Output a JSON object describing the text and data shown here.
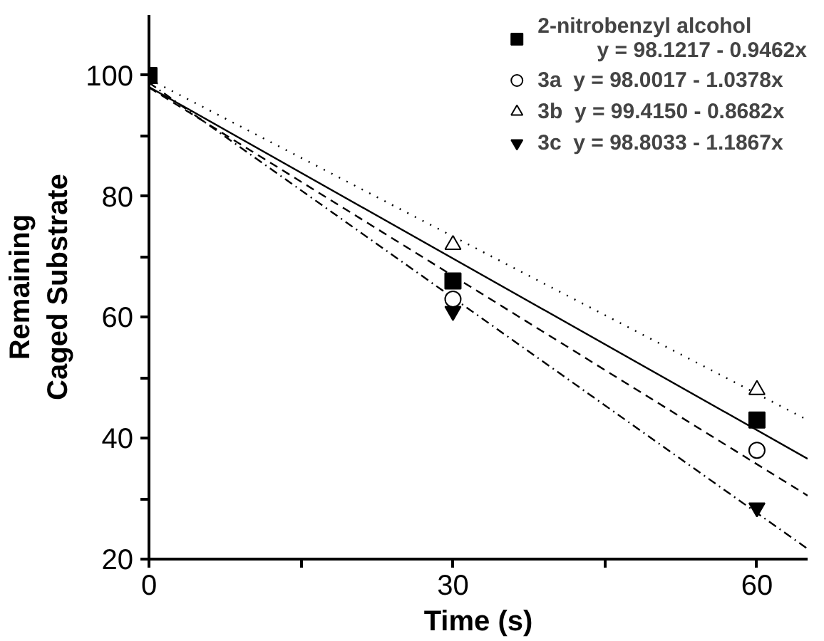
{
  "chart_data": {
    "type": "scatter",
    "xlabel": "Time (s)",
    "ylabel": "Remaining\nCaged Substrate",
    "xlim": [
      0,
      65
    ],
    "ylim": [
      20,
      110
    ],
    "xticks": [
      0,
      {
        "value": 15,
        "label": null
      },
      30,
      {
        "value": 45,
        "label": null
      },
      60
    ],
    "yticks": [
      20,
      {
        "value": 30,
        "label": null
      },
      40,
      {
        "value": 50,
        "label": null
      },
      60,
      {
        "value": 70,
        "label": null
      },
      80,
      {
        "value": 90,
        "label": null
      },
      100
    ],
    "grid": false,
    "legend": "top right",
    "series": [
      {
        "name": "2-nitrobenzyl alcohol\n          y = 98.1217 - 0.9462x",
        "color": "#000000",
        "marker": "square",
        "x": [
          0,
          30,
          60
        ],
        "values": [
          100,
          66,
          43
        ]
      },
      {
        "name": "3a  y = 98.0017 - 1.0378x",
        "color": "#000000",
        "marker": "circle",
        "x": [
          30,
          60
        ],
        "values": [
          63,
          38
        ]
      },
      {
        "name": "3b  y = 99.4150 - 0.8682x",
        "color": "#000000",
        "marker": "triangle",
        "x": [
          30,
          60
        ],
        "values": [
          72,
          48
        ]
      },
      {
        "name": "3c  y = 98.8033 - 1.1867x",
        "color": "#000000",
        "x": [
          30,
          60
        ],
        "values": [
          61,
          28.5
        ]
      },
      {
        "type": "line",
        "color": "#000000",
        "line_style": "solid",
        "x": [
          0,
          65
        ],
        "values": [
          98.1,
          36.6
        ]
      },
      {
        "type": "line",
        "color": "#000000",
        "line_style": "dashed",
        "x": [
          0,
          65
        ],
        "values": [
          98.0,
          30.5
        ]
      },
      {
        "type": "line",
        "color": "#000000",
        "line_style": "dotted",
        "x": [
          0,
          65
        ],
        "values": [
          99.4,
          43.0
        ]
      },
      {
        "type": "line",
        "color": "#000000",
        "line_style": "dashdot",
        "x": [
          0,
          65
        ],
        "values": [
          98.8,
          21.7
        ]
      }
    ]
  }
}
